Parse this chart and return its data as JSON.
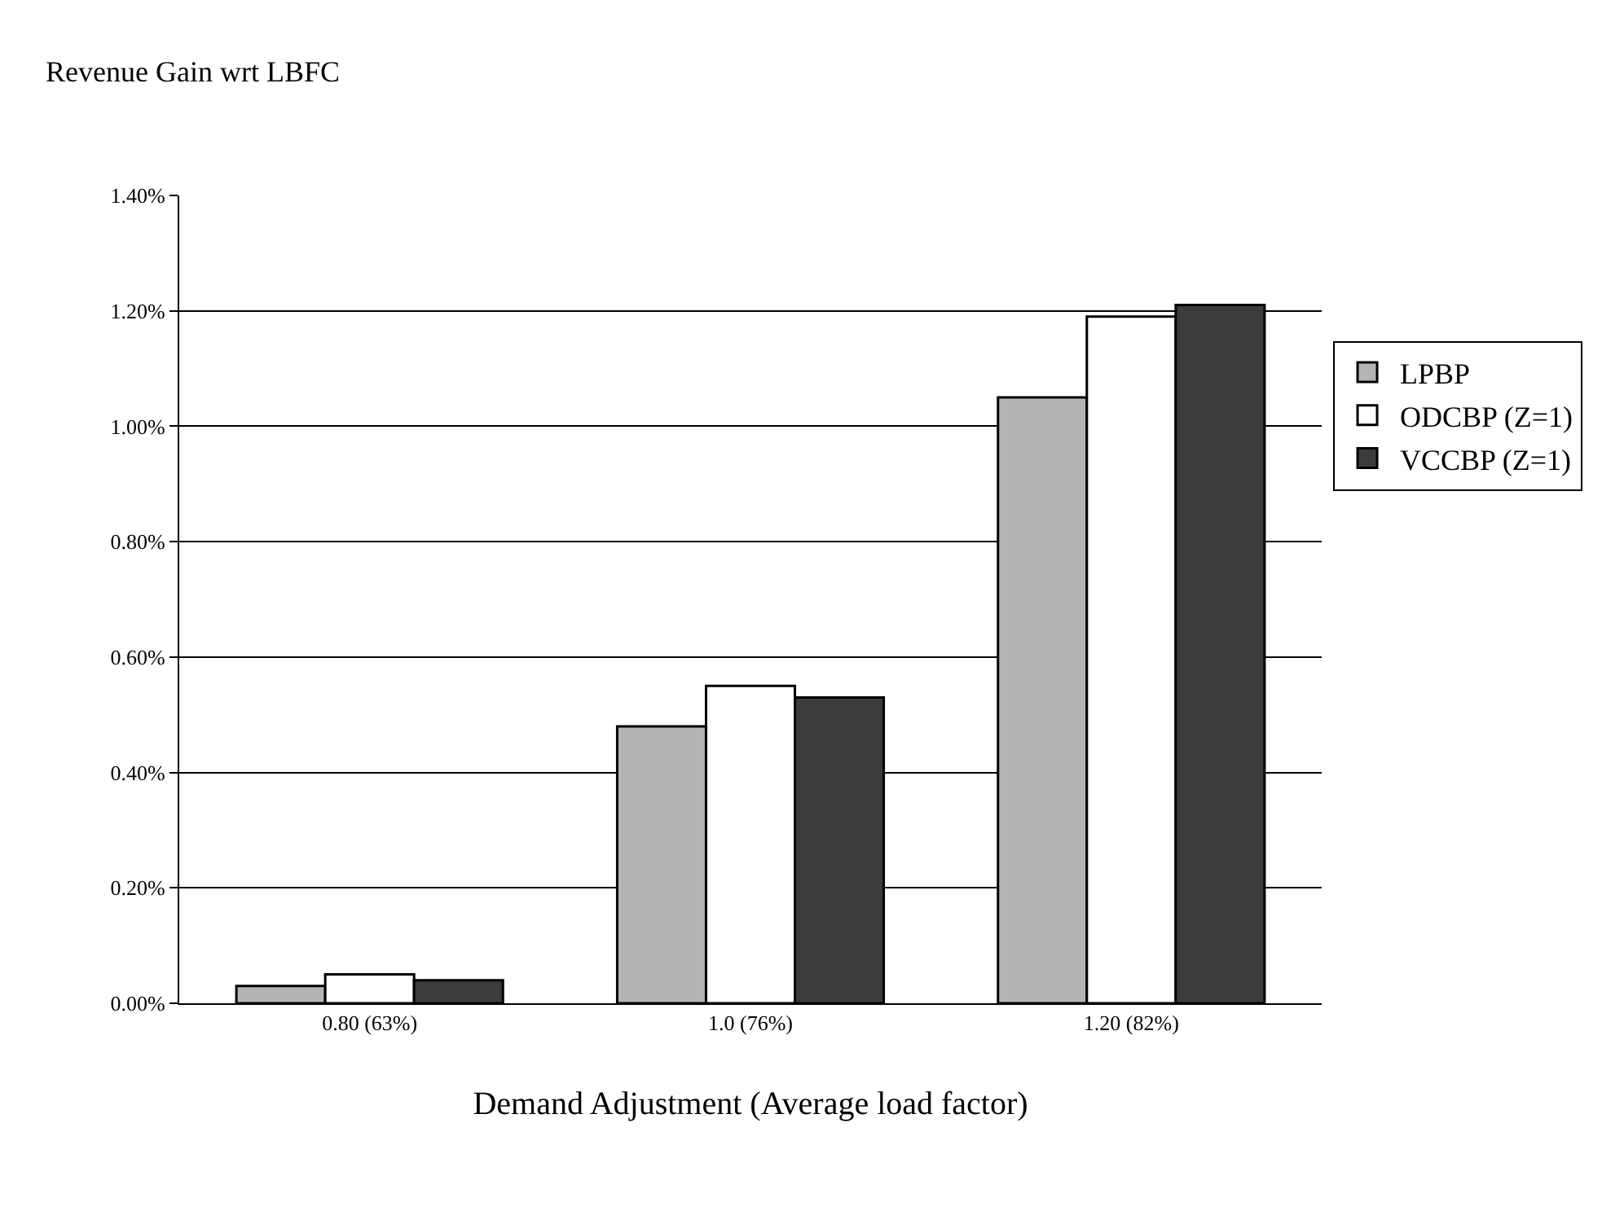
{
  "chart_data": {
    "type": "bar",
    "xlabel": "Demand Adjustment (Average load factor)",
    "ylabel": "Revenue Gain wrt LBFC",
    "categories": [
      "0.80 (63%)",
      "1.0 (76%)",
      "1.20 (82%)"
    ],
    "series": [
      {
        "name": "LPBP",
        "color": "#b4b4b4",
        "values": [
          0.03,
          0.48,
          1.05
        ]
      },
      {
        "name": "ODCBP (Z=1)",
        "color": "#ffffff",
        "values": [
          0.05,
          0.55,
          1.19
        ]
      },
      {
        "name": "VCCBP (Z=1)",
        "color": "#3c3c3c",
        "values": [
          0.04,
          0.53,
          1.21
        ]
      }
    ],
    "ylim": [
      0,
      1.4
    ],
    "yticks": [
      {
        "value": 0,
        "label": "0.00%"
      },
      {
        "value": 0.2,
        "label": "0.20%"
      },
      {
        "value": 0.4,
        "label": "0.40%"
      },
      {
        "value": 0.6,
        "label": "0.60%"
      },
      {
        "value": 0.8,
        "label": "0.80%"
      },
      {
        "value": 1.0,
        "label": "1.00%"
      },
      {
        "value": 1.2,
        "label": "1.20%"
      },
      {
        "value": 1.4,
        "label": "1.40%"
      }
    ],
    "grid": "y",
    "legend": "right"
  }
}
